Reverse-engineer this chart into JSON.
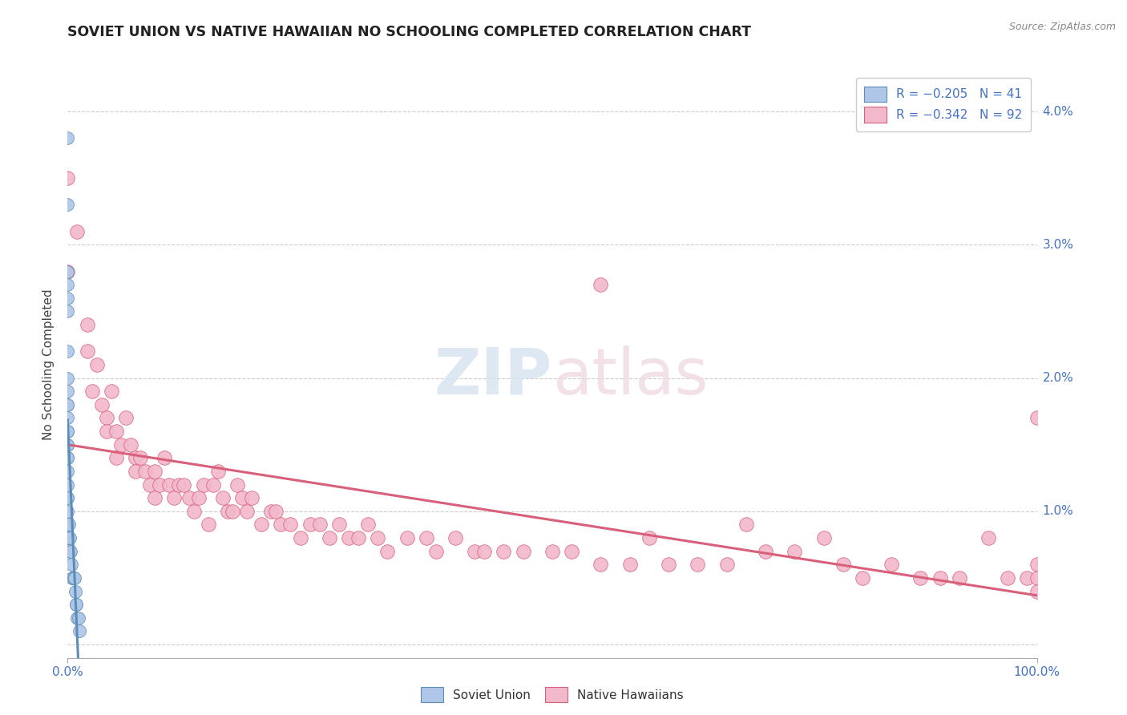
{
  "title": "SOVIET UNION VS NATIVE HAWAIIAN NO SCHOOLING COMPLETED CORRELATION CHART",
  "source": "Source: ZipAtlas.com",
  "ylabel": "No Schooling Completed",
  "ytick_vals": [
    0.0,
    0.01,
    0.02,
    0.03,
    0.04
  ],
  "ytick_labels": [
    "",
    "1.0%",
    "2.0%",
    "3.0%",
    "4.0%"
  ],
  "xlim": [
    0.0,
    1.0
  ],
  "ylim": [
    -0.001,
    0.043
  ],
  "soviet_color": "#aec6e8",
  "soviet_edge_color": "#5b8db8",
  "native_color": "#f2b8cb",
  "native_edge_color": "#d9607a",
  "soviet_line_color": "#5b8db8",
  "native_line_color": "#d9607a",
  "watermark_zip_color": "#d0d8e8",
  "watermark_atlas_color": "#f0d0d8",
  "soviet_points_x": [
    0.0,
    0.0,
    0.0,
    0.0,
    0.0,
    0.0,
    0.0,
    0.0,
    0.0,
    0.0,
    0.0,
    0.0,
    0.0,
    0.0,
    0.0,
    0.0,
    0.0,
    0.0,
    0.0,
    0.0,
    0.0,
    0.0,
    0.0,
    0.0,
    0.0,
    0.001,
    0.001,
    0.002,
    0.002,
    0.003,
    0.004,
    0.005,
    0.005,
    0.006,
    0.007,
    0.008,
    0.009,
    0.009,
    0.01,
    0.011,
    0.012
  ],
  "soviet_points_y": [
    0.038,
    0.033,
    0.028,
    0.027,
    0.026,
    0.025,
    0.022,
    0.02,
    0.019,
    0.018,
    0.018,
    0.017,
    0.016,
    0.016,
    0.015,
    0.015,
    0.014,
    0.014,
    0.013,
    0.012,
    0.011,
    0.011,
    0.01,
    0.009,
    0.008,
    0.009,
    0.008,
    0.008,
    0.007,
    0.007,
    0.006,
    0.005,
    0.005,
    0.005,
    0.005,
    0.004,
    0.003,
    0.003,
    0.002,
    0.002,
    0.001
  ],
  "native_points_x": [
    0.0,
    0.0,
    0.01,
    0.02,
    0.02,
    0.025,
    0.03,
    0.035,
    0.04,
    0.04,
    0.045,
    0.05,
    0.05,
    0.055,
    0.06,
    0.065,
    0.07,
    0.07,
    0.075,
    0.08,
    0.085,
    0.09,
    0.09,
    0.095,
    0.1,
    0.105,
    0.11,
    0.115,
    0.12,
    0.125,
    0.13,
    0.135,
    0.14,
    0.145,
    0.15,
    0.155,
    0.16,
    0.165,
    0.17,
    0.175,
    0.18,
    0.185,
    0.19,
    0.2,
    0.21,
    0.215,
    0.22,
    0.23,
    0.24,
    0.25,
    0.26,
    0.27,
    0.28,
    0.29,
    0.3,
    0.31,
    0.32,
    0.33,
    0.35,
    0.37,
    0.38,
    0.4,
    0.42,
    0.43,
    0.45,
    0.47,
    0.5,
    0.52,
    0.55,
    0.55,
    0.58,
    0.6,
    0.62,
    0.65,
    0.68,
    0.7,
    0.72,
    0.75,
    0.78,
    0.8,
    0.82,
    0.85,
    0.88,
    0.9,
    0.92,
    0.95,
    0.97,
    0.99,
    1.0,
    1.0,
    1.0,
    1.0
  ],
  "native_points_y": [
    0.035,
    0.028,
    0.031,
    0.024,
    0.022,
    0.019,
    0.021,
    0.018,
    0.017,
    0.016,
    0.019,
    0.016,
    0.014,
    0.015,
    0.017,
    0.015,
    0.014,
    0.013,
    0.014,
    0.013,
    0.012,
    0.013,
    0.011,
    0.012,
    0.014,
    0.012,
    0.011,
    0.012,
    0.012,
    0.011,
    0.01,
    0.011,
    0.012,
    0.009,
    0.012,
    0.013,
    0.011,
    0.01,
    0.01,
    0.012,
    0.011,
    0.01,
    0.011,
    0.009,
    0.01,
    0.01,
    0.009,
    0.009,
    0.008,
    0.009,
    0.009,
    0.008,
    0.009,
    0.008,
    0.008,
    0.009,
    0.008,
    0.007,
    0.008,
    0.008,
    0.007,
    0.008,
    0.007,
    0.007,
    0.007,
    0.007,
    0.007,
    0.007,
    0.006,
    0.027,
    0.006,
    0.008,
    0.006,
    0.006,
    0.006,
    0.009,
    0.007,
    0.007,
    0.008,
    0.006,
    0.005,
    0.006,
    0.005,
    0.005,
    0.005,
    0.008,
    0.005,
    0.005,
    0.006,
    0.005,
    0.004,
    0.017
  ],
  "native_trend_x": [
    0.0,
    1.0
  ],
  "native_trend_y": [
    0.018,
    0.004
  ],
  "soviet_trend_x": [
    0.0,
    0.012
  ],
  "soviet_trend_y": [
    0.0155,
    0.0085
  ]
}
